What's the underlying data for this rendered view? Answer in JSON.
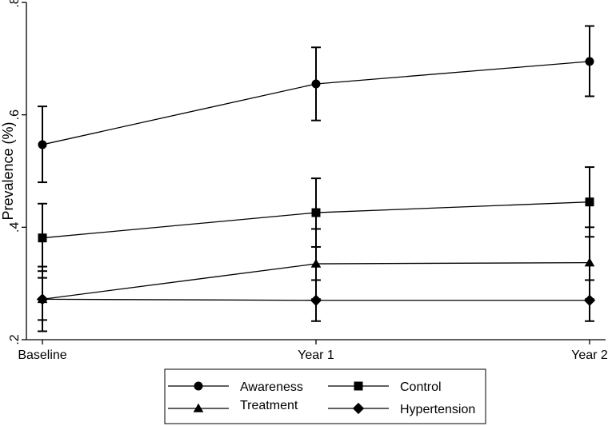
{
  "chart_data": {
    "type": "line",
    "title": "",
    "xlabel": "",
    "ylabel": "Prevalence (%)",
    "categories": [
      "Baseline",
      "Year 1",
      "Year 2"
    ],
    "ylim": [
      0.2,
      0.8
    ],
    "yticks": [
      0.2,
      0.4,
      0.6,
      0.8
    ],
    "ytick_labels": [
      ".2",
      ".4",
      ".6",
      ".8"
    ],
    "grid": false,
    "legend_position": "bottom",
    "series": [
      {
        "name": "Awareness",
        "marker": "circle",
        "values": [
          0.547,
          0.655,
          0.695
        ],
        "ci_low": [
          0.48,
          0.59,
          0.633
        ],
        "ci_high": [
          0.615,
          0.72,
          0.758
        ]
      },
      {
        "name": "Control",
        "marker": "square",
        "values": [
          0.381,
          0.426,
          0.445
        ],
        "ci_low": [
          0.322,
          0.365,
          0.383
        ],
        "ci_high": [
          0.442,
          0.487,
          0.507
        ]
      },
      {
        "name": "Treatment",
        "marker": "triangle",
        "values": [
          0.272,
          0.335,
          0.337
        ],
        "ci_low": [
          0.215,
          0.272,
          0.272
        ],
        "ci_high": [
          0.33,
          0.397,
          0.4
        ]
      },
      {
        "name": "Hypertension",
        "marker": "diamond",
        "values": [
          0.272,
          0.27,
          0.27
        ],
        "ci_low": [
          0.235,
          0.233,
          0.233
        ],
        "ci_high": [
          0.31,
          0.306,
          0.306
        ]
      }
    ]
  }
}
